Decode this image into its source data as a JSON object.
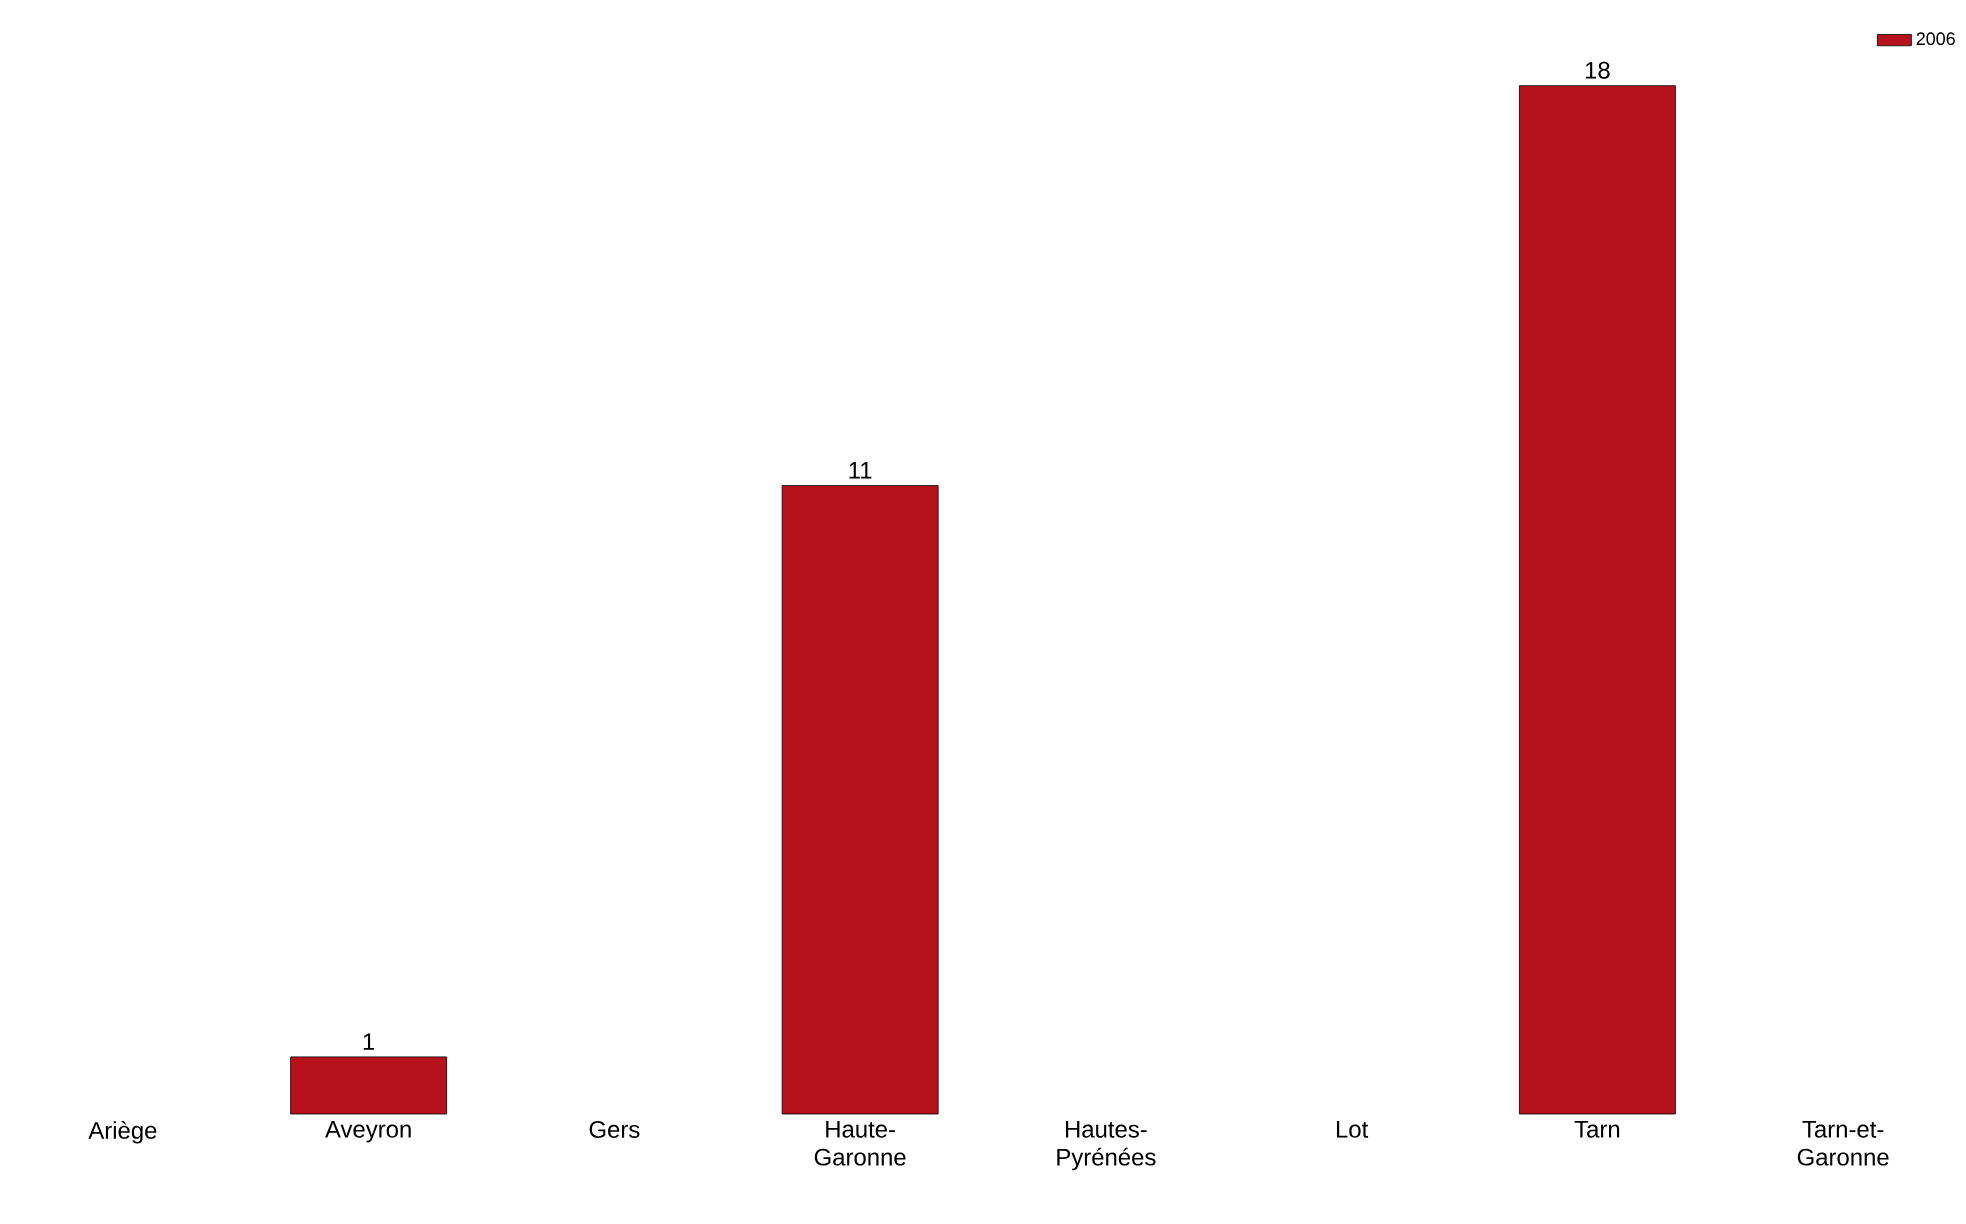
{
  "chart_data": {
    "type": "bar",
    "categories": [
      "Ariège",
      "Aveyron",
      "Gers",
      "Haute-Garonne",
      "Hautes-Pyrénées",
      "Lot",
      "Tarn",
      "Tarn-et-Garonne"
    ],
    "series": [
      {
        "name": "2006",
        "color": "#b5121b",
        "values": [
          null,
          1,
          null,
          11,
          null,
          null,
          18,
          null
        ]
      }
    ],
    "data_labels": true,
    "legend": "top right"
  }
}
